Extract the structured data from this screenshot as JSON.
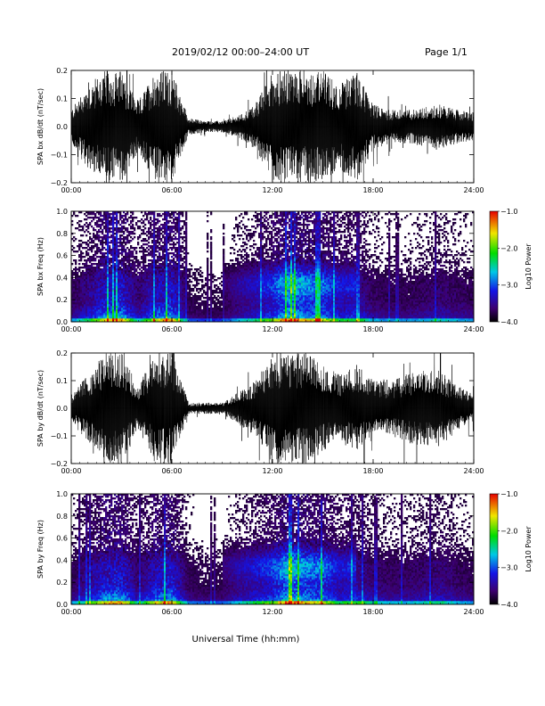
{
  "header": {
    "title": "2019/02/12  00:00–24:00 UT",
    "page": "Page 1/1"
  },
  "xlabel": "Universal Time (hh:mm)",
  "chart_data": [
    {
      "type": "line",
      "ylabel": "SPA bx dB/dt (nT/sec)",
      "xlim": [
        0,
        24
      ],
      "ylim": [
        -0.2,
        0.2
      ],
      "x_ticks": [
        "00:00",
        "06:00",
        "12:00",
        "18:00",
        "24:00"
      ],
      "y_ticks": [
        "−0.2",
        "−0.1",
        "0.0",
        "0.1",
        "0.2"
      ],
      "envelope": {
        "hours": [
          0,
          1,
          2,
          3,
          4,
          5,
          6,
          7,
          8,
          9,
          10,
          11,
          12,
          13,
          14,
          15,
          16,
          17,
          18,
          19,
          20,
          21,
          22,
          23,
          24
        ],
        "amplitude": [
          0.06,
          0.15,
          0.2,
          0.2,
          0.09,
          0.2,
          0.2,
          0.03,
          0.02,
          0.02,
          0.04,
          0.08,
          0.2,
          0.2,
          0.2,
          0.2,
          0.15,
          0.2,
          0.08,
          0.06,
          0.06,
          0.07,
          0.08,
          0.06,
          0.05
        ]
      }
    },
    {
      "type": "heatmap",
      "ylabel": "SPA bx Freq (Hz)",
      "xlim": [
        0,
        24
      ],
      "ylim": [
        0,
        1.0
      ],
      "x_ticks": [
        "00:00",
        "06:00",
        "12:00",
        "18:00",
        "24:00"
      ],
      "y_ticks": [
        "0.0",
        "0.2",
        "0.4",
        "0.6",
        "0.8",
        "1.0"
      ],
      "colorbar": {
        "label": "Log10 Power",
        "ticks": [
          "−1.0",
          "−2.0",
          "−3.0",
          "−4.0"
        ],
        "range": [
          -4.0,
          -1.0
        ]
      },
      "activity": [
        0.3,
        0.5,
        0.75,
        0.8,
        0.4,
        0.7,
        0.8,
        0.25,
        0.2,
        0.2,
        0.35,
        0.45,
        0.6,
        0.9,
        0.75,
        0.7,
        0.5,
        0.55,
        0.35,
        0.3,
        0.3,
        0.35,
        0.4,
        0.35,
        0.3
      ]
    },
    {
      "type": "line",
      "ylabel": "SPA by dB/dt (nT/sec)",
      "xlim": [
        0,
        24
      ],
      "ylim": [
        -0.2,
        0.2
      ],
      "x_ticks": [
        "00:00",
        "06:00",
        "12:00",
        "18:00",
        "24:00"
      ],
      "y_ticks": [
        "−0.2",
        "−0.1",
        "0.0",
        "0.1",
        "0.2"
      ],
      "envelope": {
        "hours": [
          0,
          1,
          2,
          3,
          4,
          5,
          6,
          7,
          8,
          9,
          10,
          11,
          12,
          13,
          14,
          15,
          16,
          17,
          18,
          19,
          20,
          21,
          22,
          23,
          24
        ],
        "amplitude": [
          0.05,
          0.12,
          0.2,
          0.2,
          0.08,
          0.2,
          0.2,
          0.02,
          0.02,
          0.02,
          0.06,
          0.1,
          0.2,
          0.2,
          0.2,
          0.16,
          0.12,
          0.16,
          0.1,
          0.1,
          0.12,
          0.14,
          0.14,
          0.08,
          0.05
        ]
      }
    },
    {
      "type": "heatmap",
      "ylabel": "SPA by Freq (Hz)",
      "xlim": [
        0,
        24
      ],
      "ylim": [
        0,
        1.0
      ],
      "x_ticks": [
        "00:00",
        "06:00",
        "12:00",
        "18:00",
        "24:00"
      ],
      "y_ticks": [
        "0.0",
        "0.2",
        "0.4",
        "0.6",
        "0.8",
        "1.0"
      ],
      "colorbar": {
        "label": "Log10 Power",
        "ticks": [
          "−1.0",
          "−2.0",
          "−3.0",
          "−4.0"
        ],
        "range": [
          -4.0,
          -1.0
        ]
      },
      "activity": [
        0.3,
        0.5,
        0.75,
        0.8,
        0.4,
        0.7,
        0.8,
        0.3,
        0.25,
        0.25,
        0.4,
        0.5,
        0.6,
        0.9,
        0.75,
        0.7,
        0.5,
        0.55,
        0.4,
        0.35,
        0.35,
        0.4,
        0.45,
        0.35,
        0.3
      ]
    }
  ]
}
